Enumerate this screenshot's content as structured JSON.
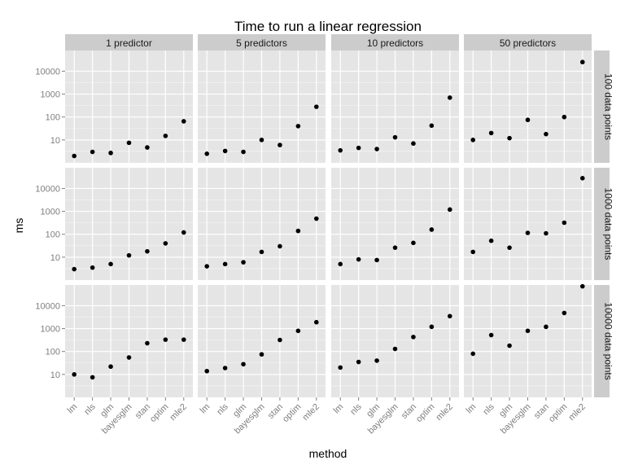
{
  "chart_data": {
    "type": "scatter",
    "title": "Time to run a linear regression",
    "xlabel": "method",
    "ylabel": "ms",
    "y_scale": "log10",
    "ylim": [
      1,
      80000
    ],
    "y_ticks": [
      10,
      100,
      1000,
      10000
    ],
    "y_tick_labels": [
      "10",
      "100",
      "1000",
      "10000"
    ],
    "grid": true,
    "categories": [
      "lm",
      "nls",
      "glm",
      "bayesglm",
      "stan",
      "optim",
      "mle2"
    ],
    "column_facets": [
      "1 predictor",
      "5 predictors",
      "10 predictors",
      "50 predictors"
    ],
    "row_facets": [
      "100 data points",
      "1000 data points",
      "10000 data points"
    ],
    "panels": [
      {
        "col": "1 predictor",
        "row": "100 data points",
        "values": [
          2,
          3,
          2.7,
          7.5,
          4.7,
          15,
          65
        ]
      },
      {
        "col": "5 predictors",
        "row": "100 data points",
        "values": [
          2.5,
          3.3,
          3,
          10,
          6,
          40,
          280
        ]
      },
      {
        "col": "10 predictors",
        "row": "100 data points",
        "values": [
          3.5,
          4.5,
          4,
          13,
          7,
          42,
          700
        ]
      },
      {
        "col": "50 predictors",
        "row": "100 data points",
        "values": [
          10,
          20,
          12,
          75,
          18,
          100,
          25000
        ]
      },
      {
        "col": "1 predictor",
        "row": "1000 data points",
        "values": [
          3,
          3.5,
          5,
          12,
          18,
          40,
          120
        ]
      },
      {
        "col": "5 predictors",
        "row": "1000 data points",
        "values": [
          4,
          5,
          6,
          17,
          30,
          140,
          480
        ]
      },
      {
        "col": "10 predictors",
        "row": "1000 data points",
        "values": [
          5,
          8,
          7.5,
          26,
          42,
          160,
          1200
        ]
      },
      {
        "col": "50 predictors",
        "row": "1000 data points",
        "values": [
          17,
          52,
          26,
          115,
          110,
          320,
          28000
        ]
      },
      {
        "col": "1 predictor",
        "row": "10000 data points",
        "values": [
          10,
          7.5,
          22,
          55,
          230,
          330,
          330
        ]
      },
      {
        "col": "5 predictors",
        "row": "10000 data points",
        "values": [
          14,
          19,
          28,
          75,
          320,
          800,
          1900
        ]
      },
      {
        "col": "10 predictors",
        "row": "10000 data points",
        "values": [
          20,
          35,
          40,
          130,
          430,
          1200,
          3500
        ]
      },
      {
        "col": "50 predictors",
        "row": "10000 data points",
        "values": [
          80,
          520,
          180,
          800,
          1200,
          4800,
          70000
        ]
      }
    ]
  },
  "colors": {
    "panel_background": "#e5e5e5",
    "major_grid": "#ffffff",
    "minor_grid": "#f2f2f2",
    "strip_background": "#cccccc",
    "point": "#000000",
    "tick_text": "#7f7f7f"
  }
}
